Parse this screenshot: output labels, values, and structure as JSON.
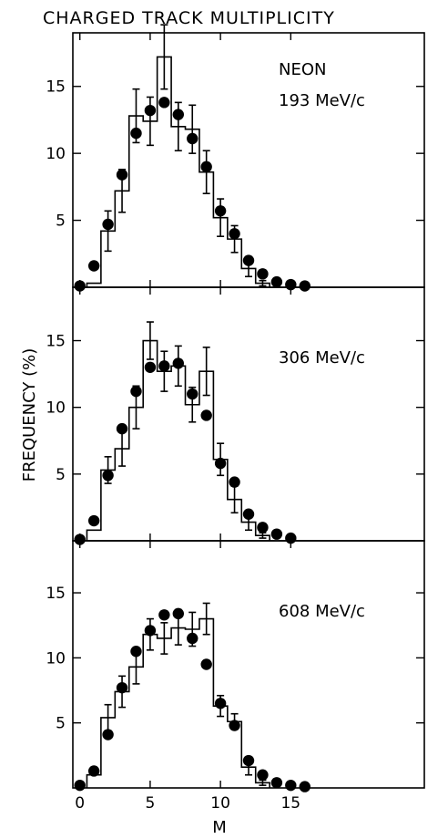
{
  "title": "CHARGED TRACK MULTIPLICITY",
  "ylabel": "FREQUENCY (%)",
  "xlabel": "M",
  "chart_data": [
    {
      "type": "bar",
      "label_lines": [
        "NEON",
        "193 MeV/c"
      ],
      "xlim": [
        -0.5,
        24.5
      ],
      "ylim": [
        0,
        19
      ],
      "xticks": [
        "0",
        "5",
        "10",
        "15"
      ],
      "yticks": [
        "5",
        "10",
        "15"
      ],
      "histogram": {
        "x": [
          1,
          2,
          3,
          4,
          5,
          6,
          7,
          8,
          9,
          10,
          11,
          12,
          13
        ],
        "y": [
          0.3,
          4.2,
          7.2,
          12.8,
          12.4,
          17.2,
          12.0,
          11.8,
          8.6,
          5.2,
          3.6,
          1.4,
          0.3
        ],
        "err": [
          0,
          1.5,
          1.6,
          2.0,
          1.8,
          2.4,
          1.8,
          1.8,
          1.6,
          1.4,
          1.0,
          0.6,
          0.2
        ]
      },
      "points": {
        "x": [
          0,
          1,
          2,
          3,
          4,
          5,
          6,
          7,
          8,
          9,
          10,
          11,
          12,
          13,
          14,
          15,
          16
        ],
        "y": [
          0.1,
          1.6,
          4.7,
          8.4,
          11.5,
          13.2,
          13.8,
          12.9,
          11.1,
          9.0,
          5.7,
          4.0,
          2.0,
          1.0,
          0.4,
          0.2,
          0.1
        ]
      }
    },
    {
      "type": "bar",
      "label_lines": [
        "306 MeV/c"
      ],
      "xlim": [
        -0.5,
        24.5
      ],
      "ylim": [
        0,
        19
      ],
      "xticks": [
        "0",
        "5",
        "10",
        "15"
      ],
      "yticks": [
        "5",
        "10",
        "15"
      ],
      "histogram": {
        "x": [
          1,
          2,
          3,
          4,
          5,
          6,
          7,
          8,
          9,
          10,
          11,
          12,
          13
        ],
        "y": [
          0.8,
          5.3,
          6.9,
          10.0,
          15.0,
          12.7,
          13.1,
          10.2,
          12.7,
          6.1,
          3.1,
          1.4,
          0.4
        ],
        "err": [
          0,
          1.0,
          1.3,
          1.6,
          1.4,
          1.5,
          1.5,
          1.3,
          1.8,
          1.2,
          1.0,
          0.6,
          0.2
        ]
      },
      "points": {
        "x": [
          0,
          1,
          2,
          3,
          4,
          5,
          6,
          7,
          8,
          9,
          10,
          11,
          12,
          13,
          14,
          15
        ],
        "y": [
          0.1,
          1.5,
          4.9,
          8.4,
          11.2,
          13.0,
          13.1,
          13.3,
          11.0,
          9.4,
          5.8,
          4.4,
          2.0,
          1.0,
          0.5,
          0.2
        ]
      }
    },
    {
      "type": "bar",
      "label_lines": [
        "608 MeV/c"
      ],
      "xlim": [
        -0.5,
        24.5
      ],
      "ylim": [
        0,
        19
      ],
      "xticks": [
        "0",
        "5",
        "10",
        "15"
      ],
      "yticks": [
        "5",
        "10",
        "15"
      ],
      "histogram": {
        "x": [
          1,
          2,
          3,
          4,
          5,
          6,
          7,
          8,
          9,
          10,
          11,
          12,
          13
        ],
        "y": [
          1.0,
          5.4,
          7.4,
          9.3,
          11.8,
          11.5,
          12.3,
          12.2,
          13.0,
          6.3,
          5.1,
          1.6,
          0.4
        ],
        "err": [
          0,
          1.0,
          1.2,
          1.3,
          1.2,
          1.2,
          1.3,
          1.3,
          1.2,
          0.8,
          0.6,
          0.6,
          0.2
        ]
      },
      "points": {
        "x": [
          0,
          1,
          2,
          3,
          4,
          5,
          6,
          7,
          8,
          9,
          10,
          11,
          12,
          13,
          14,
          15,
          16
        ],
        "y": [
          0.2,
          1.3,
          4.1,
          7.7,
          10.5,
          12.1,
          13.3,
          13.4,
          11.5,
          9.5,
          6.5,
          4.8,
          2.1,
          1.0,
          0.4,
          0.2,
          0.1
        ]
      }
    }
  ]
}
